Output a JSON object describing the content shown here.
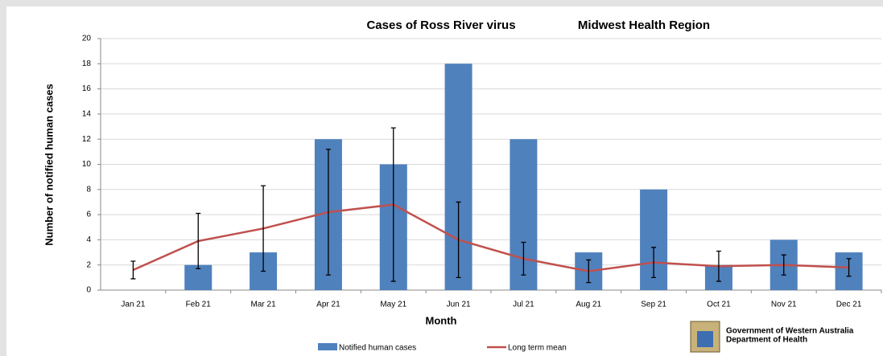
{
  "chart_data": {
    "type": "bar_line",
    "title": "Cases of Ross River virus",
    "subtitle": "Midwest Health Region",
    "x_label": "Month",
    "y_label": "Number of notified human cases",
    "categories": [
      "Jan 21",
      "Feb 21",
      "Mar 21",
      "Apr 21",
      "May 21",
      "Jun 21",
      "Jul 21",
      "Aug 21",
      "Sep 21",
      "Oct 21",
      "Nov 21",
      "Dec 21"
    ],
    "series": [
      {
        "name": "Notified human cases",
        "type": "bar",
        "color": "#4f81bd",
        "values": [
          0,
          2,
          3,
          12,
          10,
          18,
          12,
          3,
          8,
          2,
          4,
          3
        ]
      },
      {
        "name": "Long term mean",
        "type": "line",
        "color": "#c0504d",
        "values": [
          1.6,
          3.9,
          4.9,
          6.2,
          6.8,
          4.0,
          2.5,
          1.5,
          2.2,
          1.9,
          2.0,
          1.8
        ],
        "errors": [
          0.7,
          2.2,
          3.4,
          5.0,
          6.1,
          3.0,
          1.3,
          0.9,
          1.2,
          1.2,
          0.8,
          0.7
        ]
      }
    ],
    "ylim": [
      0,
      20
    ],
    "yticks": [
      0,
      2,
      4,
      6,
      8,
      10,
      12,
      14,
      16,
      18,
      20
    ],
    "grid": true
  },
  "logo": {
    "line1": "Government of Western Australia",
    "line2": "Department of Health"
  }
}
